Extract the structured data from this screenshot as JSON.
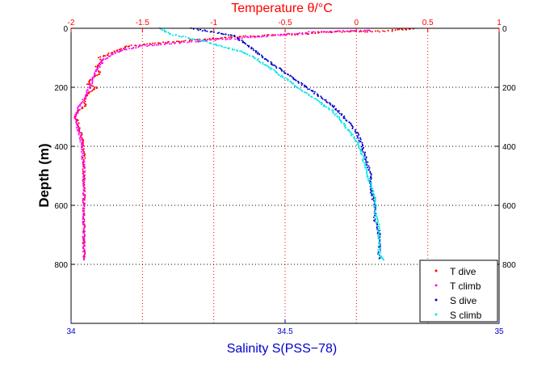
{
  "chart_data": {
    "type": "scatter",
    "top_axis": {
      "label": "Temperature θ/°C",
      "range": [
        -2,
        1
      ],
      "ticks": [
        "-2",
        "-1.5",
        "-1",
        "-0.5",
        "0",
        "0.5",
        "1"
      ],
      "color": "#ff0000"
    },
    "bottom_axis": {
      "label": "Salinity S(PSS−78)",
      "range": [
        34,
        35
      ],
      "ticks": [
        "34",
        "34.5",
        "35"
      ],
      "color": "#0000cc"
    },
    "y_axis": {
      "label": "Depth (m)",
      "range": [
        0,
        1000
      ],
      "reversed": true,
      "ticks": [
        "0",
        "200",
        "400",
        "600",
        "800"
      ]
    },
    "grid": true,
    "legend_position": "bottom-right",
    "series": [
      {
        "name": "T dive",
        "axis": "temperature",
        "color": "#ff0000",
        "points": [
          [
            0.4,
            2
          ],
          [
            0.3,
            5
          ],
          [
            0.2,
            10
          ],
          [
            -0.2,
            12
          ],
          [
            -0.4,
            20
          ],
          [
            -0.9,
            30
          ],
          [
            -1.6,
            60
          ],
          [
            -1.7,
            80
          ],
          [
            -1.75,
            90
          ],
          [
            -1.8,
            100
          ],
          [
            -1.78,
            110
          ],
          [
            -1.82,
            130
          ],
          [
            -1.8,
            150
          ],
          [
            -1.85,
            170
          ],
          [
            -1.88,
            190
          ],
          [
            -1.82,
            200
          ],
          [
            -1.88,
            220
          ],
          [
            -1.9,
            240
          ],
          [
            -1.9,
            260
          ],
          [
            -1.95,
            280
          ],
          [
            -1.97,
            300
          ],
          [
            -1.95,
            320
          ],
          [
            -1.94,
            340
          ],
          [
            -1.93,
            360
          ],
          [
            -1.92,
            380
          ],
          [
            -1.92,
            400
          ],
          [
            -1.91,
            420
          ],
          [
            -1.91,
            450
          ],
          [
            -1.91,
            500
          ],
          [
            -1.91,
            550
          ],
          [
            -1.91,
            600
          ],
          [
            -1.91,
            650
          ],
          [
            -1.91,
            700
          ],
          [
            -1.91,
            750
          ],
          [
            -1.91,
            780
          ]
        ]
      },
      {
        "name": "T climb",
        "axis": "temperature",
        "color": "#ff00ff",
        "points": [
          [
            0.1,
            8
          ],
          [
            -0.3,
            12
          ],
          [
            -0.6,
            25
          ],
          [
            -1.0,
            40
          ],
          [
            -1.5,
            60
          ],
          [
            -1.65,
            75
          ],
          [
            -1.72,
            90
          ],
          [
            -1.78,
            110
          ],
          [
            -1.8,
            130
          ],
          [
            -1.83,
            150
          ],
          [
            -1.85,
            170
          ],
          [
            -1.86,
            190
          ],
          [
            -1.88,
            210
          ],
          [
            -1.9,
            230
          ],
          [
            -1.92,
            250
          ],
          [
            -1.95,
            270
          ],
          [
            -1.97,
            300
          ],
          [
            -1.97,
            320
          ],
          [
            -1.95,
            340
          ],
          [
            -1.94,
            360
          ],
          [
            -1.93,
            380
          ],
          [
            -1.92,
            400
          ],
          [
            -1.92,
            430
          ],
          [
            -1.91,
            470
          ],
          [
            -1.91,
            520
          ],
          [
            -1.91,
            580
          ],
          [
            -1.91,
            640
          ],
          [
            -1.91,
            700
          ],
          [
            -1.91,
            760
          ],
          [
            -1.91,
            785
          ]
        ]
      },
      {
        "name": "S dive",
        "axis": "salinity",
        "color": "#0000cc",
        "points": [
          [
            34.28,
            0
          ],
          [
            34.32,
            10
          ],
          [
            34.38,
            25
          ],
          [
            34.4,
            45
          ],
          [
            34.42,
            65
          ],
          [
            34.45,
            100
          ],
          [
            34.48,
            130
          ],
          [
            34.51,
            160
          ],
          [
            34.53,
            180
          ],
          [
            34.55,
            200
          ],
          [
            34.58,
            230
          ],
          [
            34.61,
            260
          ],
          [
            34.63,
            290
          ],
          [
            34.65,
            320
          ],
          [
            34.67,
            360
          ],
          [
            34.68,
            400
          ],
          [
            34.69,
            450
          ],
          [
            34.7,
            500
          ],
          [
            34.7,
            550
          ],
          [
            34.71,
            600
          ],
          [
            34.71,
            650
          ],
          [
            34.72,
            700
          ],
          [
            34.72,
            750
          ],
          [
            34.72,
            780
          ]
        ]
      },
      {
        "name": "S climb",
        "axis": "salinity",
        "color": "#00e5e5",
        "points": [
          [
            34.21,
            0
          ],
          [
            34.23,
            20
          ],
          [
            34.3,
            40
          ],
          [
            34.35,
            60
          ],
          [
            34.4,
            80
          ],
          [
            34.43,
            100
          ],
          [
            34.46,
            130
          ],
          [
            34.49,
            160
          ],
          [
            34.52,
            190
          ],
          [
            34.55,
            220
          ],
          [
            34.58,
            250
          ],
          [
            34.61,
            280
          ],
          [
            34.63,
            310
          ],
          [
            34.65,
            350
          ],
          [
            34.67,
            390
          ],
          [
            34.68,
            430
          ],
          [
            34.69,
            480
          ],
          [
            34.7,
            530
          ],
          [
            34.71,
            580
          ],
          [
            34.71,
            630
          ],
          [
            34.72,
            680
          ],
          [
            34.72,
            730
          ],
          [
            34.72,
            770
          ],
          [
            34.73,
            785
          ]
        ]
      }
    ]
  }
}
